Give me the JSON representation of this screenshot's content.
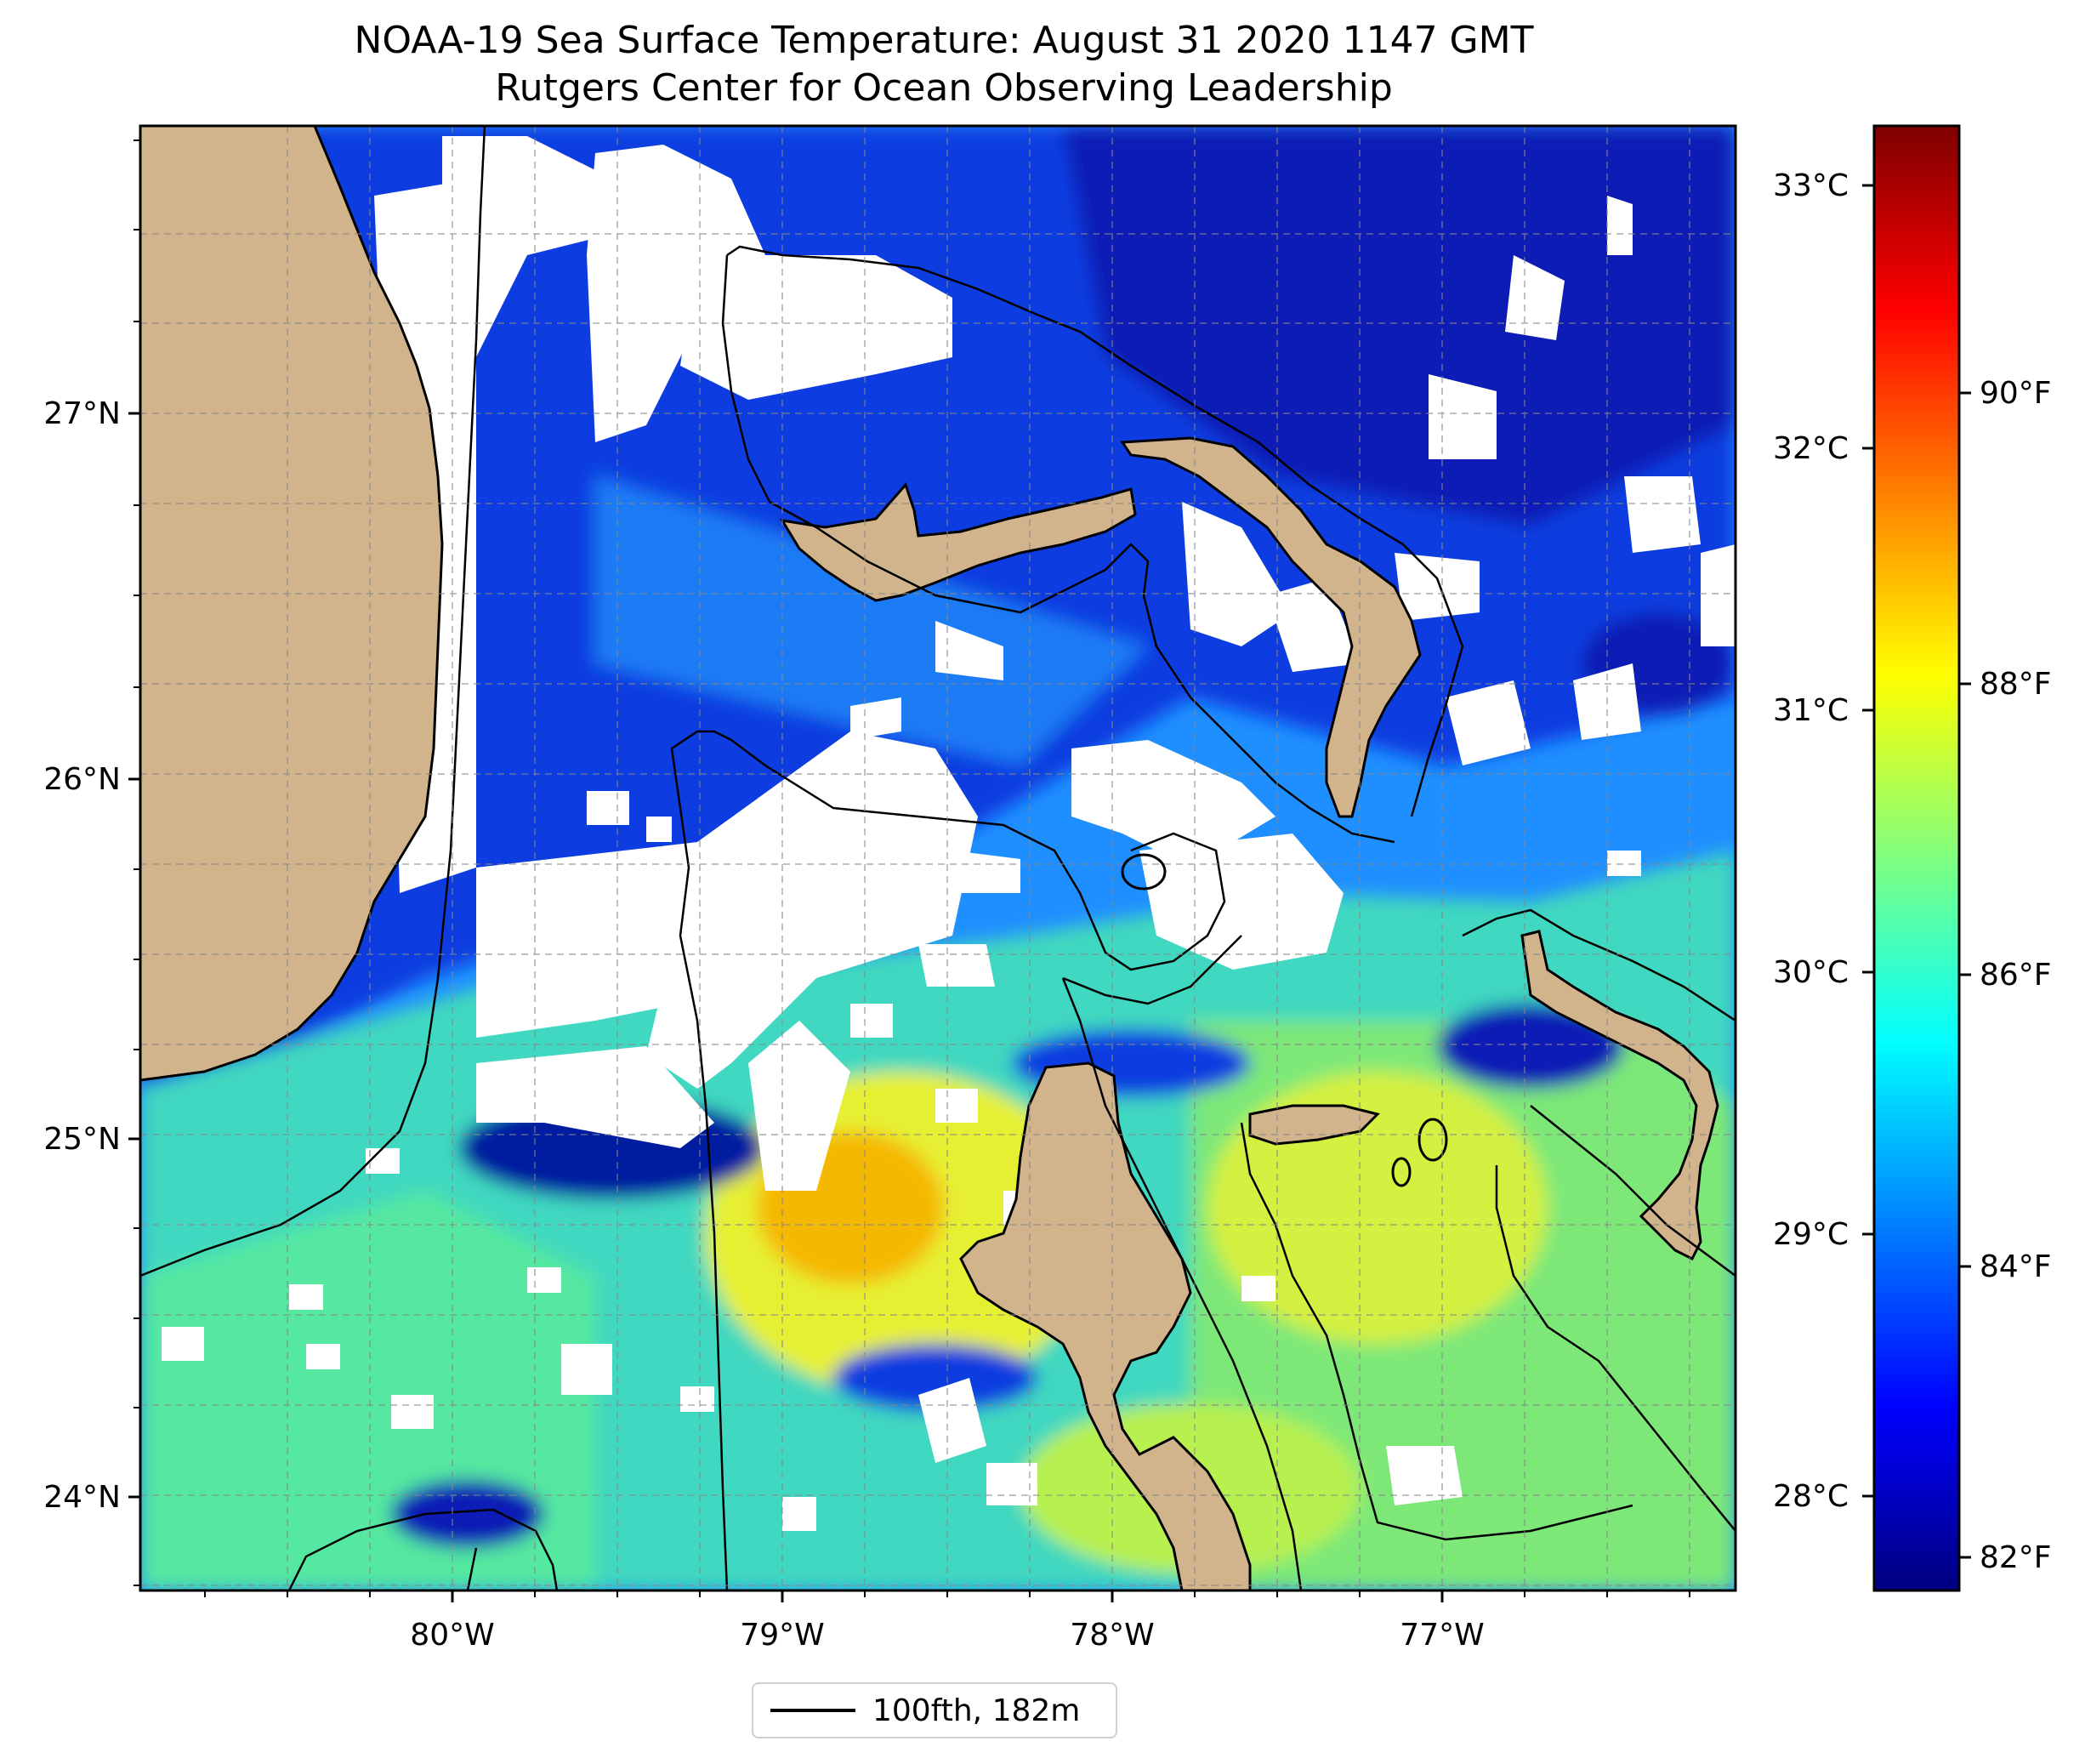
{
  "title": "NOAA-19 Sea Surface Temperature: August 31 2020 1147 GMT",
  "subtitle": "Rutgers Center for Ocean Observing Leadership",
  "map": {
    "lon_range": [
      -80.95,
      -76.1
    ],
    "lat_range": [
      23.75,
      27.8
    ],
    "lon_ticks": [
      "80°W",
      "79°W",
      "78°W",
      "77°W"
    ],
    "lat_ticks": [
      "27°N",
      "26°N",
      "25°N",
      "24°N"
    ],
    "gridlines": true,
    "land_color": "#d2b48c",
    "cloud_mask_color": "#ffffff",
    "colormap": "jet"
  },
  "colorbar": {
    "celsius_ticks": [
      "33°C",
      "32°C",
      "31°C",
      "30°C",
      "29°C",
      "28°C"
    ],
    "fahrenheit_ticks": [
      "90°F",
      "88°F",
      "86°F",
      "84°F",
      "82°F"
    ],
    "range_c": [
      27.6,
      33.2
    ]
  },
  "legend": {
    "label": "100fth, 182m",
    "line_color": "#000000"
  }
}
